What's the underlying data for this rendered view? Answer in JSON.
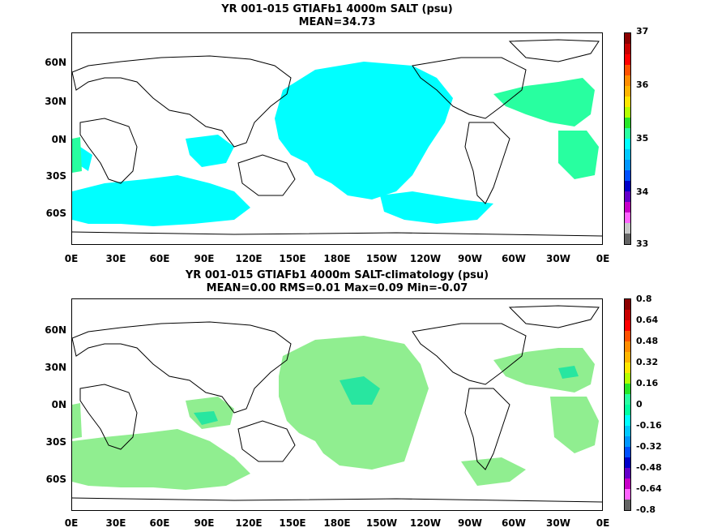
{
  "top_panel": {
    "title_line1": "YR 001-015 GTIAFb1 4000m SALT (psu)",
    "title_line2": "MEAN=34.73",
    "colorbar_labels": [
      "37",
      "36",
      "35",
      "34",
      "33"
    ],
    "colorbar_colors": [
      "#8c0000",
      "#c80000",
      "#ff0000",
      "#ff5000",
      "#ff8c00",
      "#ffb400",
      "#ffe600",
      "#b4ff00",
      "#28e628",
      "#28ffa0",
      "#00ffff",
      "#00c8ff",
      "#0096ff",
      "#0050ff",
      "#0000c8",
      "#6400c8",
      "#c800c8",
      "#ff64ff",
      "#c8c8c8",
      "#646464"
    ],
    "fill_colors": {
      "cyan": "#00ffff",
      "green": "#28ffa0"
    }
  },
  "bottom_panel": {
    "title_line1": "YR 001-015 GTIAFb1 4000m SALT-climatology (psu)",
    "title_line2": "MEAN=0.00   RMS=0.01   Max=0.09   Min=-0.07",
    "colorbar_labels": [
      "0.8",
      "0.64",
      "0.48",
      "0.32",
      "0.16",
      "0",
      "-0.16",
      "-0.32",
      "-0.48",
      "-0.64",
      "-0.8"
    ],
    "colorbar_colors": [
      "#8c0000",
      "#c80000",
      "#ff0000",
      "#ff5000",
      "#ff8c00",
      "#ffb400",
      "#ffe600",
      "#b4ff00",
      "#28e628",
      "#28ffa0",
      "#00ffa0",
      "#00ffff",
      "#00c8ff",
      "#0096ff",
      "#0050ff",
      "#0000c8",
      "#6400c8",
      "#c800c8",
      "#ff64ff",
      "#646464"
    ],
    "fill_colors": {
      "light_green": "#90ee90",
      "sea_green": "#28e6a0"
    }
  },
  "axes": {
    "lat_labels": [
      "60N",
      "30N",
      "0N",
      "30S",
      "60S"
    ],
    "lon_labels": [
      "0E",
      "30E",
      "60E",
      "90E",
      "120E",
      "150E",
      "180E",
      "150W",
      "120W",
      "90W",
      "60W",
      "30W",
      "0E"
    ]
  }
}
